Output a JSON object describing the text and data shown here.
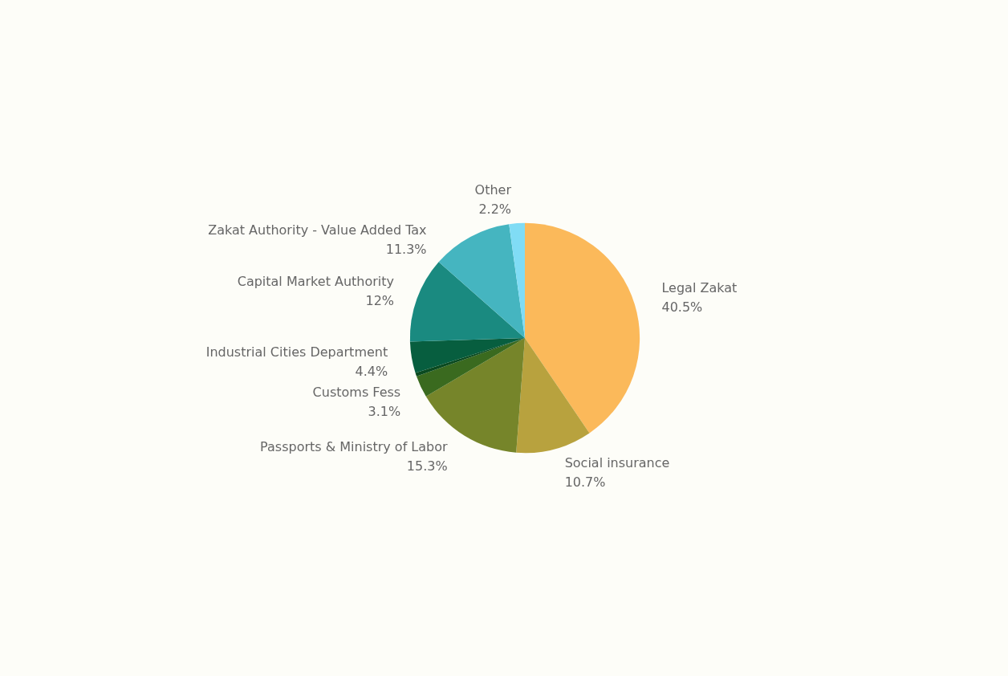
{
  "chart_data": {
    "type": "pie",
    "categories": [
      "Legal Zakat",
      "Social insurance",
      "Passports & Ministry of Labor",
      "Customs Fess",
      null,
      "Industrial Cities Department",
      "Capital Market Authority",
      "Zakat Authority - Value Added Tax",
      "Other"
    ],
    "values": [
      40.5,
      10.7,
      15.3,
      3.1,
      0.5,
      4.4,
      12,
      11.3,
      2.2
    ],
    "value_labels": [
      "40.5%",
      "10.7%",
      "15.3%",
      "3.1%",
      null,
      "4.4%",
      "12%",
      "11.3%",
      "2.2%"
    ],
    "colors": [
      "#fbb95a",
      "#b8a23e",
      "#76852a",
      "#3a6a1f",
      "#0a4a20",
      "#075e3f",
      "#1a8a80",
      "#45b5c0",
      "#80dcf5"
    ],
    "legend": false
  }
}
